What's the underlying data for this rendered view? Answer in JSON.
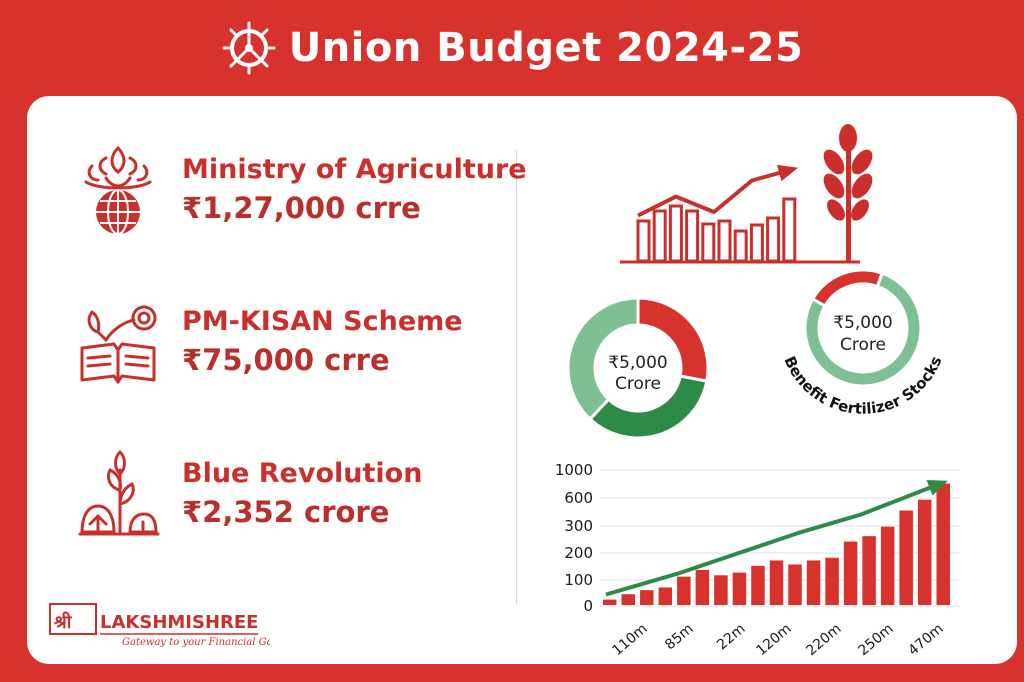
{
  "header": {
    "title": "Union Budget 2024-25",
    "icon": "ashoka-chakra-icon"
  },
  "items": [
    {
      "name": "Ministry of Agriculture",
      "amount": "₹1,27,000 crre",
      "icon": "wheat-globe-icon"
    },
    {
      "name": "PM-KISAN Scheme",
      "amount": "₹75,000 crre",
      "icon": "book-sprout-icon"
    },
    {
      "name": "Blue Revolution",
      "amount": "₹2,352 crore",
      "icon": "plants-icon"
    }
  ],
  "logo": {
    "brand": "LAKSHMISHREE",
    "prefix": "श्री",
    "tagline": "Gateway to your Financial Goals"
  },
  "colors": {
    "red": "#d8322e",
    "dark_red": "#b8302c",
    "green": "#2e8b47",
    "light_green": "#7fbf94"
  },
  "chart_data": [
    {
      "type": "bar",
      "title": "",
      "trend_icon": "bar-trend-arrow-wheat-icon",
      "values": [
        4,
        5,
        5.5,
        5,
        3.7,
        4,
        3,
        3.6,
        4.3,
        6.2
      ],
      "trend_line": [
        0.35,
        0.62,
        0.4,
        0.85,
        1.0
      ]
    },
    {
      "type": "pie",
      "label_line1": "₹5,000",
      "label_line2": "Crore",
      "slices": [
        {
          "name": "red",
          "value": 28,
          "color": "#d8322e"
        },
        {
          "name": "dark-green",
          "value": 34,
          "color": "#2e8b47"
        },
        {
          "name": "light-green",
          "value": 38,
          "color": "#7fbf94"
        }
      ]
    },
    {
      "type": "pie",
      "label_line1": "₹5,000",
      "label_line2": "Crore",
      "caption": "Benefit Fertilizer Stocks",
      "slices": [
        {
          "name": "red",
          "value": 22,
          "color": "#d8322e"
        },
        {
          "name": "light-green",
          "value": 78,
          "color": "#7fbf94"
        }
      ]
    },
    {
      "type": "bar",
      "title": "",
      "xlabel": "",
      "ylabel": "",
      "yticks": [
        "1000",
        "600",
        "300",
        "200",
        "100",
        "0"
      ],
      "xticks": [
        "110m",
        "85m",
        "22m",
        "120m",
        "220m",
        "250m",
        "470m"
      ],
      "values": [
        0.4,
        0.8,
        1.1,
        1.3,
        2.1,
        2.6,
        2.2,
        2.4,
        2.9,
        3.3,
        3.0,
        3.3,
        3.5,
        4.7,
        5.1,
        5.8,
        7.0,
        7.8,
        9.0
      ],
      "ylim": [
        0,
        10
      ],
      "trend_line": [
        1.0,
        2.6,
        4.1,
        5.6,
        6.9,
        9.2
      ]
    }
  ]
}
